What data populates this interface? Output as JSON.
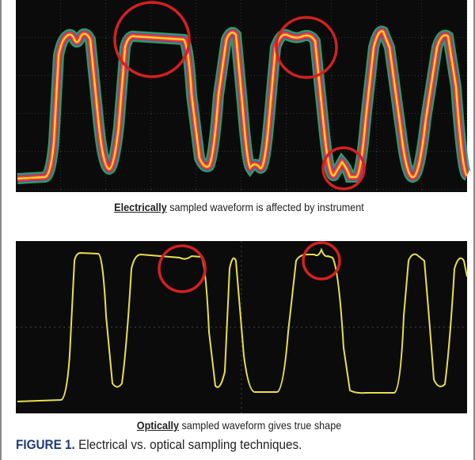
{
  "top_panel": {
    "caption_bold": "Electrically",
    "caption_rest": " sampled waveform is affected by instrument"
  },
  "bottom_panel": {
    "caption_bold": "Optically",
    "caption_rest": " sampled waveform gives true shape"
  },
  "figure_caption": {
    "label": "FIGURE 1.",
    "text": " Electrical vs. optical sampling techniques."
  },
  "colors": {
    "scope_background": "#0b0b0b",
    "electrical_trace": "#ff6a1a",
    "electrical_halo": "#2fae6a",
    "optical_trace": "#e8e04a",
    "highlight_circle": "#d42020",
    "figure_label": "#1f3a7a"
  }
}
